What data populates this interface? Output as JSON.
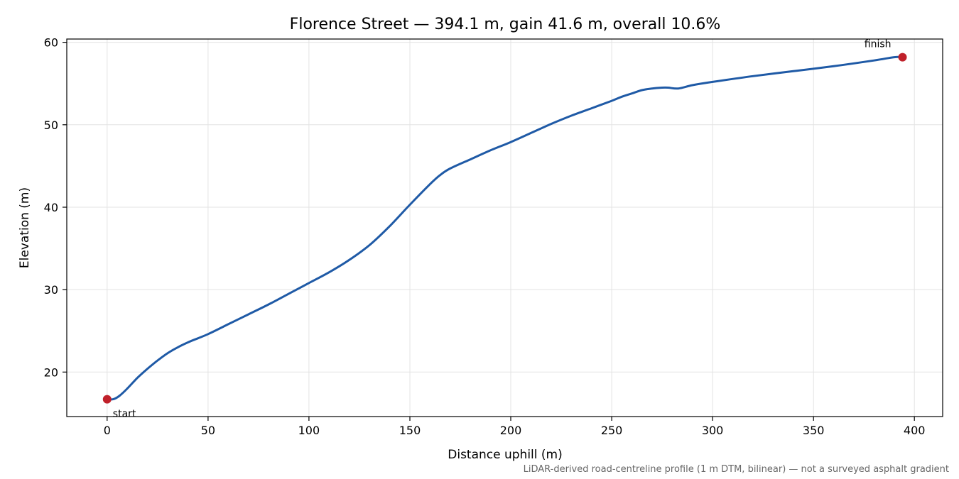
{
  "chart_data": {
    "type": "line",
    "title": "Florence Street — 394.1 m, gain 41.6 m, overall 10.6%",
    "xlabel": "Distance uphill (m)",
    "ylabel": "Elevation (m)",
    "xlim": [
      -20,
      414
    ],
    "ylim": [
      14.6,
      60.4
    ],
    "xticks": [
      0,
      50,
      100,
      150,
      200,
      250,
      300,
      350,
      400
    ],
    "yticks": [
      20,
      30,
      40,
      50,
      60
    ],
    "grid": true,
    "line_color": "#1f5aa6",
    "marker_color": "#c0202a",
    "series": [
      {
        "x": [
          0,
          3,
          6,
          10,
          15,
          20,
          25,
          30,
          35,
          40,
          45,
          50,
          60,
          70,
          80,
          90,
          100,
          110,
          120,
          130,
          140,
          150,
          160,
          165,
          170,
          180,
          190,
          200,
          210,
          220,
          230,
          240,
          250,
          255,
          260,
          265,
          270,
          275,
          278,
          283,
          290,
          300,
          320,
          340,
          360,
          380,
          390,
          394.1
        ],
        "y": [
          16.7,
          16.7,
          17.1,
          18.0,
          19.3,
          20.4,
          21.4,
          22.3,
          23.0,
          23.6,
          24.1,
          24.6,
          25.8,
          27.0,
          28.2,
          29.5,
          30.8,
          32.1,
          33.6,
          35.4,
          37.7,
          40.3,
          42.8,
          43.9,
          44.7,
          45.8,
          46.9,
          47.9,
          49.0,
          50.1,
          51.1,
          52.0,
          52.9,
          53.4,
          53.8,
          54.2,
          54.4,
          54.5,
          54.5,
          54.4,
          54.8,
          55.2,
          55.9,
          56.5,
          57.1,
          57.8,
          58.2,
          58.2
        ]
      }
    ],
    "points": [
      {
        "label": "start",
        "x": 0,
        "y": 16.7
      },
      {
        "label": "finish",
        "x": 394.1,
        "y": 58.2
      }
    ]
  },
  "footnote": "LiDAR-derived road-centreline profile (1 m DTM, bilinear) — not a surveyed asphalt gradient"
}
